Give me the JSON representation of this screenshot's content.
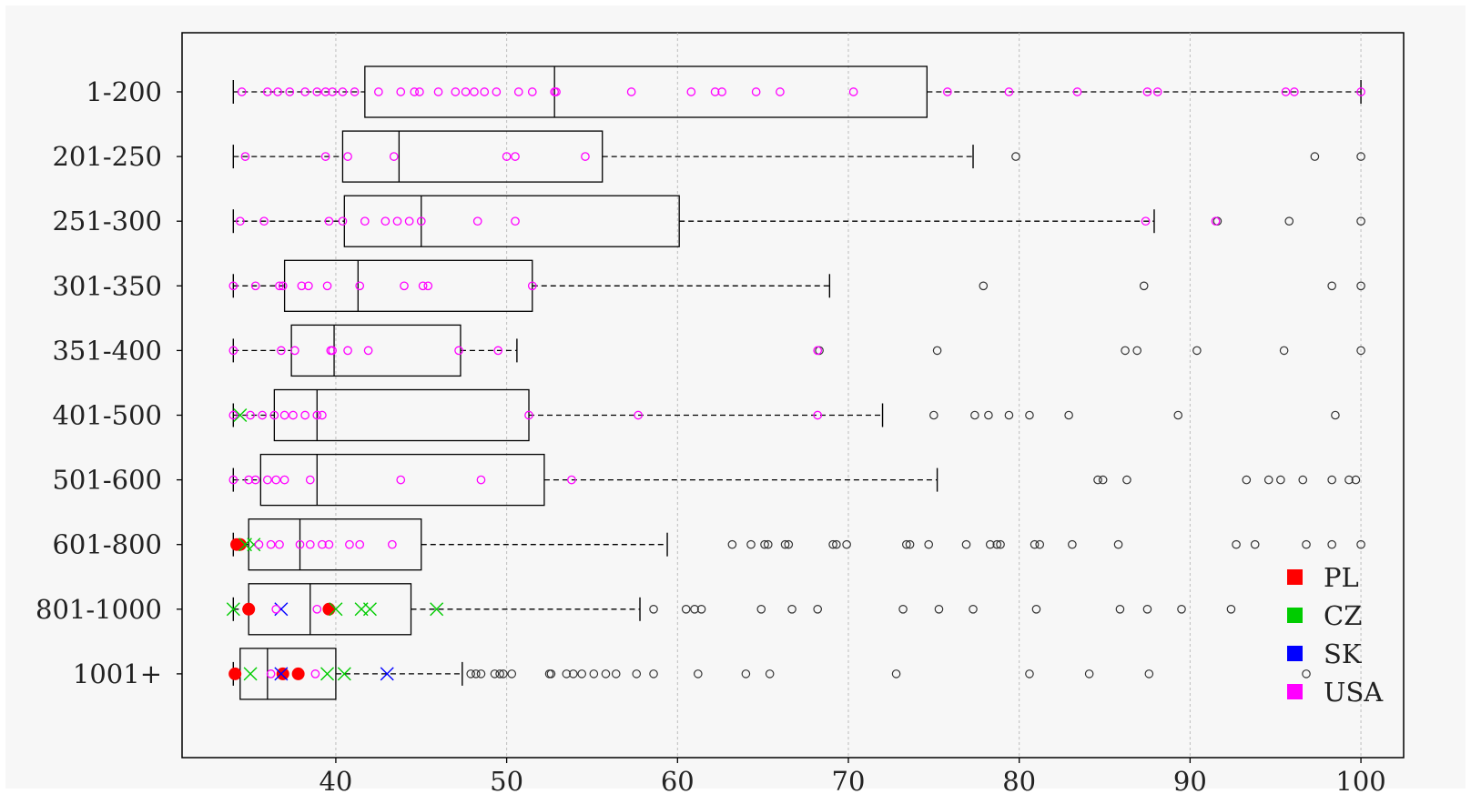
{
  "chart_data": {
    "type": "boxplot",
    "orientation": "horizontal",
    "xlim": [
      31,
      102.5
    ],
    "x_ticks": [
      40,
      50,
      60,
      70,
      80,
      90,
      100
    ],
    "grid": "vertical dotted",
    "legend_position": "bottom-right",
    "categories": [
      "1-200",
      "201-250",
      "251-300",
      "301-350",
      "351-400",
      "401-500",
      "501-600",
      "601-800",
      "801-1000",
      "1001+"
    ],
    "boxes": [
      {
        "category": "1-200",
        "whisker_low": 34.0,
        "q1": 41.7,
        "median": 52.8,
        "q3": 74.6,
        "whisker_high": 100.0,
        "outliers": []
      },
      {
        "category": "201-250",
        "whisker_low": 34.0,
        "q1": 40.4,
        "median": 43.7,
        "q3": 55.6,
        "whisker_high": 77.3,
        "outliers": [
          79.8,
          97.3,
          100.0
        ]
      },
      {
        "category": "251-300",
        "whisker_low": 34.0,
        "q1": 40.5,
        "median": 45.0,
        "q3": 60.1,
        "whisker_high": 87.9,
        "outliers": [
          91.6,
          95.8,
          100.0
        ]
      },
      {
        "category": "301-350",
        "whisker_low": 34.0,
        "q1": 37.0,
        "median": 41.3,
        "q3": 51.5,
        "whisker_high": 68.9,
        "outliers": [
          77.9,
          87.3,
          98.3,
          100.0
        ]
      },
      {
        "category": "351-400",
        "whisker_low": 34.0,
        "q1": 37.4,
        "median": 39.9,
        "q3": 47.3,
        "whisker_high": 50.6,
        "outliers": [
          68.3,
          75.2,
          86.2,
          86.9,
          90.4,
          95.5,
          100.0
        ]
      },
      {
        "category": "401-500",
        "whisker_low": 34.0,
        "q1": 36.4,
        "median": 38.9,
        "q3": 51.3,
        "whisker_high": 72.0,
        "outliers": [
          75.0,
          77.4,
          78.2,
          79.4,
          80.6,
          82.9,
          89.3,
          98.5
        ]
      },
      {
        "category": "501-600",
        "whisker_low": 34.0,
        "q1": 35.6,
        "median": 38.9,
        "q3": 52.2,
        "whisker_high": 75.2,
        "outliers": [
          84.6,
          84.9,
          86.3,
          93.3,
          94.6,
          95.3,
          96.6,
          98.3,
          99.3,
          99.7
        ]
      },
      {
        "category": "601-800",
        "whisker_low": 34.0,
        "q1": 34.9,
        "median": 37.9,
        "q3": 45.0,
        "whisker_high": 59.4,
        "outliers": [
          63.2,
          64.3,
          65.1,
          65.3,
          66.3,
          66.5,
          69.1,
          69.3,
          69.9,
          73.4,
          73.6,
          74.7,
          76.9,
          78.3,
          78.7,
          78.9,
          80.9,
          81.2,
          83.1,
          85.8,
          92.7,
          93.8,
          96.8,
          98.3,
          100.0
        ]
      },
      {
        "category": "801-1000",
        "whisker_low": 34.0,
        "q1": 34.9,
        "median": 38.5,
        "q3": 44.4,
        "whisker_high": 57.8,
        "outliers": [
          58.6,
          60.5,
          61.0,
          61.4,
          64.9,
          66.7,
          68.2,
          73.2,
          75.3,
          77.3,
          81.0,
          85.9,
          87.5,
          89.5,
          92.4
        ]
      },
      {
        "category": "1001+",
        "whisker_low": 34.0,
        "q1": 34.4,
        "median": 36.0,
        "q3": 40.0,
        "whisker_high": 47.4,
        "outliers": [
          47.9,
          48.2,
          48.5,
          49.3,
          49.6,
          49.8,
          50.3,
          52.5,
          52.6,
          53.5,
          53.9,
          54.4,
          55.1,
          55.8,
          56.4,
          57.6,
          58.6,
          61.2,
          64.0,
          65.4,
          72.8,
          80.6,
          84.1,
          87.6,
          96.8
        ]
      }
    ],
    "series": [
      {
        "name": "PL",
        "marker": "filled-circle",
        "color": "#ff0000",
        "points": [
          {
            "category": "601-800",
            "values": [
              34.2,
              34.4
            ]
          },
          {
            "category": "801-1000",
            "values": [
              34.9,
              39.6
            ]
          },
          {
            "category": "1001+",
            "values": [
              34.1,
              36.9,
              37.8
            ]
          }
        ]
      },
      {
        "name": "CZ",
        "marker": "x",
        "color": "#00cc00",
        "points": [
          {
            "category": "401-500",
            "values": [
              34.4
            ]
          },
          {
            "category": "601-800",
            "values": [
              34.7,
              35.2
            ]
          },
          {
            "category": "801-1000",
            "values": [
              34.0,
              40.0,
              41.5,
              42.0,
              45.9
            ]
          },
          {
            "category": "1001+",
            "values": [
              35.0,
              39.5,
              40.5
            ]
          }
        ]
      },
      {
        "name": "SK",
        "marker": "x",
        "color": "#0000ff",
        "points": [
          {
            "category": "801-1000",
            "values": [
              36.8
            ]
          },
          {
            "category": "1001+",
            "values": [
              36.8,
              43.0
            ]
          }
        ]
      },
      {
        "name": "USA",
        "marker": "open-circle",
        "color": "#ff00ff",
        "points": [
          {
            "category": "1-200",
            "values": [
              34.5,
              36.0,
              36.6,
              37.3,
              38.2,
              38.9,
              39.4,
              39.8,
              40.4,
              41.1,
              42.5,
              43.8,
              44.6,
              44.9,
              46.0,
              47.0,
              47.6,
              48.1,
              48.7,
              49.4,
              50.7,
              51.5,
              52.8,
              52.9,
              57.3,
              60.8,
              62.2,
              62.6,
              64.6,
              66.0,
              70.3,
              75.8,
              79.4,
              83.4,
              87.5,
              88.1,
              95.6,
              96.1,
              100.0
            ]
          },
          {
            "category": "201-250",
            "values": [
              34.7,
              39.4,
              40.7,
              43.4,
              50.0,
              50.5,
              54.6
            ]
          },
          {
            "category": "251-300",
            "values": [
              34.4,
              35.8,
              39.6,
              40.4,
              41.7,
              42.9,
              43.6,
              44.3,
              45.0,
              48.3,
              50.5,
              87.4,
              91.5
            ]
          },
          {
            "category": "301-350",
            "values": [
              34.0,
              35.3,
              36.7,
              36.9,
              38.0,
              38.4,
              39.5,
              41.4,
              44.0,
              45.1,
              45.4,
              51.5
            ]
          },
          {
            "category": "351-400",
            "values": [
              34.0,
              36.8,
              37.6,
              39.7,
              39.8,
              40.7,
              41.9,
              47.2,
              49.5,
              68.2
            ]
          },
          {
            "category": "401-500",
            "values": [
              34.0,
              35.0,
              35.7,
              36.4,
              37.0,
              37.5,
              38.2,
              38.9,
              39.2,
              51.3,
              57.7,
              68.2
            ]
          },
          {
            "category": "501-600",
            "values": [
              34.0,
              34.9,
              35.3,
              36.0,
              36.5,
              37.0,
              38.5,
              43.8,
              48.5,
              53.8
            ]
          },
          {
            "category": "601-800",
            "values": [
              35.5,
              36.2,
              36.7,
              37.9,
              38.5,
              39.2,
              39.6,
              40.8,
              41.4,
              43.3
            ]
          },
          {
            "category": "801-1000",
            "values": [
              36.5,
              38.9
            ]
          },
          {
            "category": "1001+",
            "values": [
              36.2,
              38.8
            ]
          }
        ]
      }
    ]
  }
}
